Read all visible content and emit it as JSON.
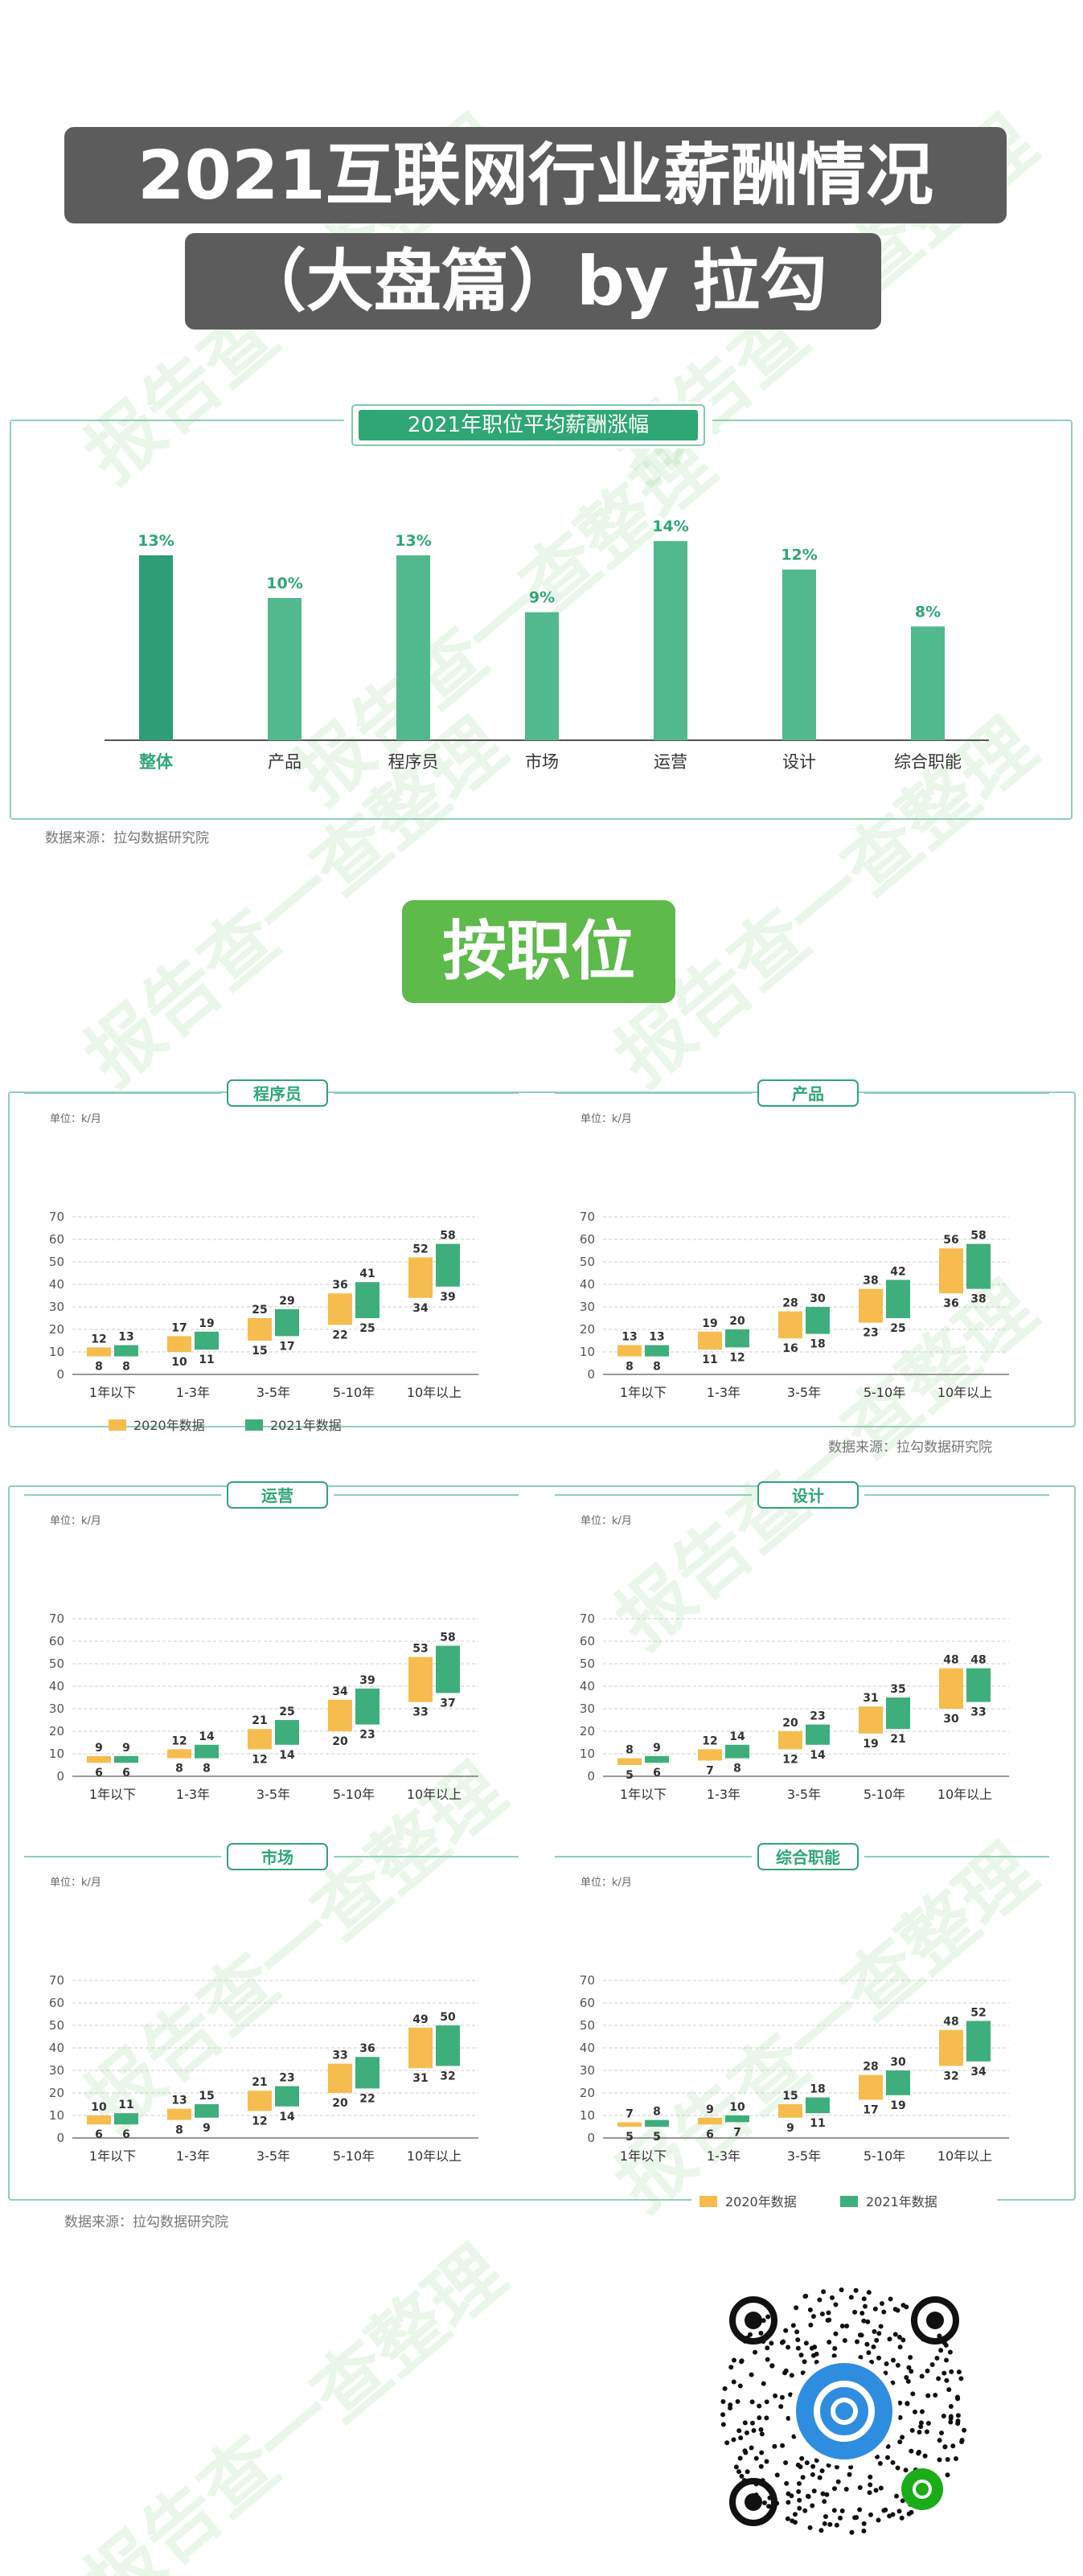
{
  "title": {
    "line1": "2021互联网行业薪酬情况",
    "line2": "（大盘篇）by 拉勾"
  },
  "section_label": "按职位",
  "source_text": "数据来源：拉勾数据研究院",
  "unit_label": "单位：k/月",
  "watermark_text": "报告查一查整理",
  "colors": {
    "y2020": "#f6bc4d",
    "y2021": "#3fae7d",
    "bar_top": "#2e9e76",
    "bar_light": "#52b98e",
    "accent": "#2fa676"
  },
  "chart_data": [
    {
      "type": "bar",
      "title": "2021年职位平均薪酬涨幅",
      "categories": [
        "整体",
        "产品",
        "程序员",
        "市场",
        "运营",
        "设计",
        "综合职能"
      ],
      "values": [
        13,
        10,
        13,
        9,
        14,
        12,
        8
      ],
      "value_labels": [
        "13%",
        "10%",
        "13%",
        "9%",
        "14%",
        "12%",
        "8%"
      ]
    },
    {
      "type": "bar",
      "title": "程序员",
      "categories": [
        "1年以下",
        "1-3年",
        "3-5年",
        "5-10年",
        "10年以上"
      ],
      "ylim": [
        0,
        70
      ],
      "yticks": [
        0,
        10,
        20,
        30,
        40,
        50,
        60,
        70
      ],
      "series": [
        {
          "name": "2020年数据",
          "low": [
            8,
            10,
            15,
            22,
            34
          ],
          "high": [
            12,
            17,
            25,
            36,
            52
          ]
        },
        {
          "name": "2021年数据",
          "low": [
            8,
            11,
            17,
            25,
            39
          ],
          "high": [
            13,
            19,
            29,
            41,
            58
          ]
        }
      ]
    },
    {
      "type": "bar",
      "title": "产品",
      "categories": [
        "1年以下",
        "1-3年",
        "3-5年",
        "5-10年",
        "10年以上"
      ],
      "ylim": [
        0,
        70
      ],
      "yticks": [
        0,
        10,
        20,
        30,
        40,
        50,
        60,
        70
      ],
      "series": [
        {
          "name": "2020年数据",
          "low": [
            8,
            11,
            16,
            23,
            36
          ],
          "high": [
            13,
            19,
            28,
            38,
            56
          ]
        },
        {
          "name": "2021年数据",
          "low": [
            8,
            12,
            18,
            25,
            38
          ],
          "high": [
            13,
            20,
            30,
            42,
            58
          ]
        }
      ]
    },
    {
      "type": "bar",
      "title": "运营",
      "categories": [
        "1年以下",
        "1-3年",
        "3-5年",
        "5-10年",
        "10年以上"
      ],
      "ylim": [
        0,
        70
      ],
      "yticks": [
        0,
        10,
        20,
        30,
        40,
        50,
        60,
        70
      ],
      "series": [
        {
          "name": "2020年数据",
          "low": [
            6,
            8,
            12,
            20,
            33
          ],
          "high": [
            9,
            12,
            21,
            34,
            53
          ]
        },
        {
          "name": "2021年数据",
          "low": [
            6,
            8,
            14,
            23,
            37
          ],
          "high": [
            9,
            14,
            25,
            39,
            58
          ]
        }
      ]
    },
    {
      "type": "bar",
      "title": "设计",
      "categories": [
        "1年以下",
        "1-3年",
        "3-5年",
        "5-10年",
        "10年以上"
      ],
      "ylim": [
        0,
        70
      ],
      "yticks": [
        0,
        10,
        20,
        30,
        40,
        50,
        60,
        70
      ],
      "series": [
        {
          "name": "2020年数据",
          "low": [
            5,
            7,
            12,
            19,
            30
          ],
          "high": [
            8,
            12,
            20,
            31,
            48
          ]
        },
        {
          "name": "2021年数据",
          "low": [
            6,
            8,
            14,
            21,
            33
          ],
          "high": [
            9,
            14,
            23,
            35,
            48
          ]
        }
      ]
    },
    {
      "type": "bar",
      "title": "市场",
      "categories": [
        "1年以下",
        "1-3年",
        "3-5年",
        "5-10年",
        "10年以上"
      ],
      "ylim": [
        0,
        70
      ],
      "yticks": [
        0,
        10,
        20,
        30,
        40,
        50,
        60,
        70
      ],
      "series": [
        {
          "name": "2020年数据",
          "low": [
            6,
            8,
            12,
            20,
            31
          ],
          "high": [
            10,
            13,
            21,
            33,
            49
          ]
        },
        {
          "name": "2021年数据",
          "low": [
            6,
            9,
            14,
            22,
            32
          ],
          "high": [
            11,
            15,
            23,
            36,
            50
          ]
        }
      ]
    },
    {
      "type": "bar",
      "title": "综合职能",
      "categories": [
        "1年以下",
        "1-3年",
        "3-5年",
        "5-10年",
        "10年以上"
      ],
      "ylim": [
        0,
        70
      ],
      "yticks": [
        0,
        10,
        20,
        30,
        40,
        50,
        60,
        70
      ],
      "series": [
        {
          "name": "2020年数据",
          "low": [
            5,
            6,
            9,
            17,
            32
          ],
          "high": [
            7,
            9,
            15,
            28,
            48
          ]
        },
        {
          "name": "2021年数据",
          "low": [
            5,
            7,
            11,
            19,
            34
          ],
          "high": [
            8,
            10,
            18,
            30,
            52
          ]
        }
      ]
    }
  ]
}
